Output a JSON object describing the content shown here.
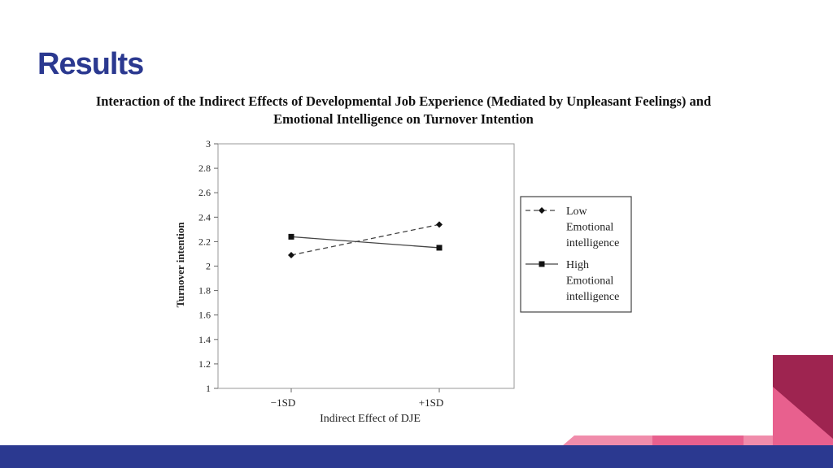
{
  "slide": {
    "title": "Results",
    "colors": {
      "title": "#2b3990",
      "footer": "#2b3990",
      "accent_dark": "#9e2450",
      "accent_pink": "#e8608e",
      "accent_light": "#f08cab"
    }
  },
  "chart_data": {
    "type": "line",
    "title_line1": "Interaction of the Indirect Effects of Developmental Job Experience (Mediated by Unpleasant Feelings) and",
    "title_line2": "Emotional Intelligence on Turnover Intention",
    "xlabel": "Indirect Effect of DJE",
    "ylabel": "Turnover intention",
    "categories": [
      "−1SD",
      "+1SD"
    ],
    "ylim": [
      1,
      3
    ],
    "yticks": [
      "1",
      "1.2",
      "1.4",
      "1.6",
      "1.8",
      "2",
      "2.2",
      "2.4",
      "2.6",
      "2.8",
      "3"
    ],
    "grid": false,
    "legend_position": "right",
    "series": [
      {
        "name": "Low Emotional intelligence",
        "name_lines": [
          "Low",
          "Emotional",
          "intelligence"
        ],
        "values": [
          2.09,
          2.34
        ],
        "line_style": "dashed",
        "marker": "diamond"
      },
      {
        "name": "High Emotional intelligence",
        "name_lines": [
          "High",
          "Emotional",
          "intelligence"
        ],
        "values": [
          2.24,
          2.15
        ],
        "line_style": "solid",
        "marker": "square"
      }
    ]
  }
}
